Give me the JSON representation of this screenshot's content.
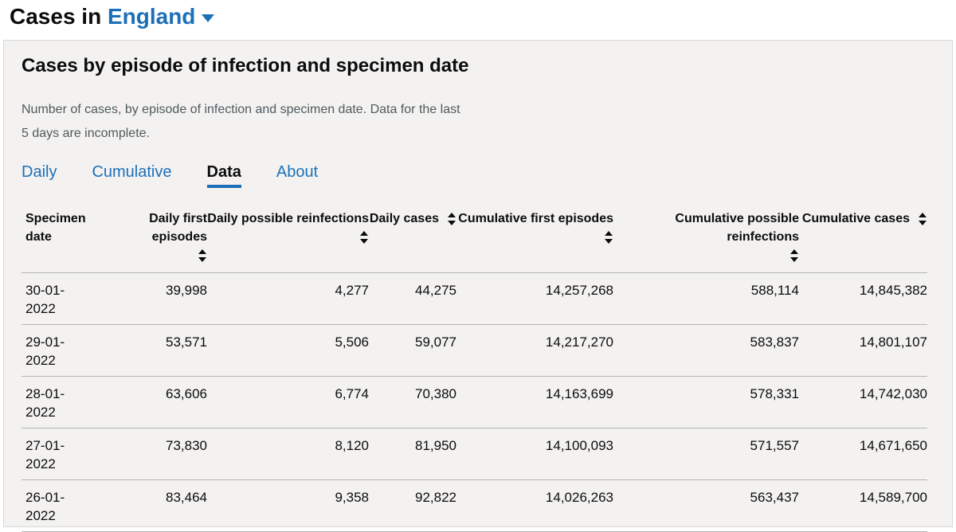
{
  "header": {
    "prefix": "Cases in",
    "area": "England"
  },
  "card": {
    "title": "Cases by episode of infection and specimen date",
    "description": "Number of cases, by episode of infection and specimen date. Data for the last 5 days are incomplete.",
    "tabs": [
      "Daily",
      "Cumulative",
      "Data",
      "About"
    ],
    "active_tab": 2
  },
  "table": {
    "columns": [
      "Specimen date",
      "Daily first episodes",
      "Daily possible reinfections",
      "Daily cases",
      "Cumulative first episodes",
      "Cumulative possible reinfections",
      "Cumulative cases"
    ],
    "rows": [
      [
        "30-01-2022",
        "39,998",
        "4,277",
        "44,275",
        "14,257,268",
        "588,114",
        "14,845,382"
      ],
      [
        "29-01-2022",
        "53,571",
        "5,506",
        "59,077",
        "14,217,270",
        "583,837",
        "14,801,107"
      ],
      [
        "28-01-2022",
        "63,606",
        "6,774",
        "70,380",
        "14,163,699",
        "578,331",
        "14,742,030"
      ],
      [
        "27-01-2022",
        "73,830",
        "8,120",
        "81,950",
        "14,100,093",
        "571,557",
        "14,671,650"
      ],
      [
        "26-01-2022",
        "83,464",
        "9,358",
        "92,822",
        "14,026,263",
        "563,437",
        "14,589,700"
      ]
    ]
  }
}
